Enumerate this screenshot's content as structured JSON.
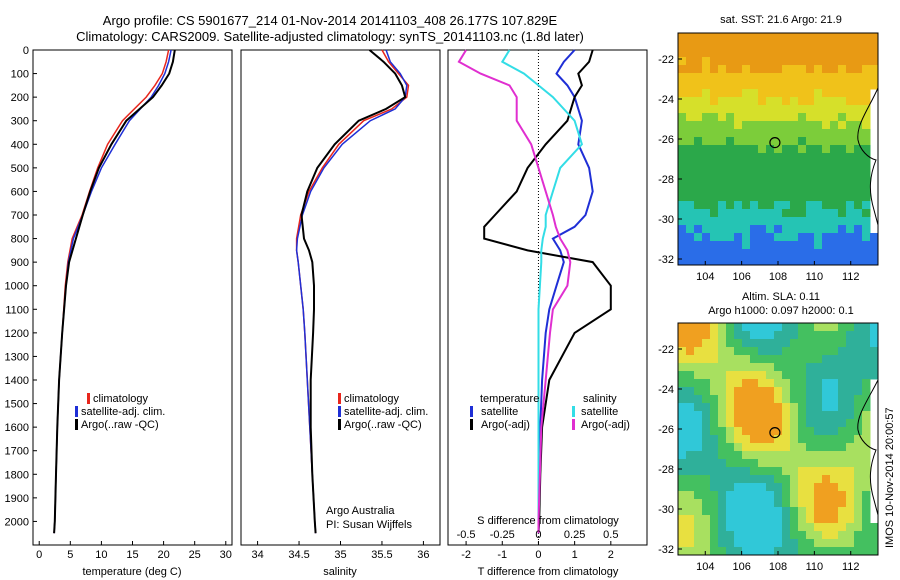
{
  "header": {
    "line1": "Argo profile: CS 5901677_214 01-Nov-2014 20141103_408 26.177S 107.829E",
    "line2": "Climatology: CARS2009. Satellite-adjusted climatology: synTS_20141103.nc (1.8d later)"
  },
  "colors": {
    "climatology": "#e8261c",
    "satellite": "#1f2fd6",
    "argo": "#000000",
    "sat_salinity": "#33dde6",
    "argo_salinity": "#e02fd0"
  },
  "chart_data": [
    {
      "type": "line",
      "name": "temperature-panel",
      "xlabel": "temperature (deg C)",
      "ylabel": "",
      "xlim": [
        -1,
        31
      ],
      "ylim": [
        2100,
        0
      ],
      "x_ticks": [
        "0",
        "5",
        "10",
        "15",
        "20",
        "25",
        "30"
      ],
      "y_ticks": [
        "0",
        "100",
        "200",
        "300",
        "400",
        "500",
        "600",
        "700",
        "800",
        "900",
        "1000",
        "1100",
        "1200",
        "1300",
        "1400",
        "1500",
        "1600",
        "1700",
        "1800",
        "1900",
        "2000"
      ],
      "legend": [
        "climatology",
        "satellite-adj. clim.",
        "Argo(..raw -QC)"
      ],
      "depth": [
        0,
        50,
        100,
        150,
        200,
        300,
        400,
        500,
        600,
        700,
        800,
        900,
        1000,
        1200,
        1400,
        1600,
        1800,
        2000,
        2050
      ],
      "series": [
        {
          "name": "climatology",
          "values": [
            20.8,
            20.4,
            19.8,
            18.6,
            17.2,
            13.4,
            11.0,
            9.4,
            8.1,
            6.9,
            5.3,
            4.6,
            4.2,
            3.7,
            3.2,
            2.9,
            2.7,
            2.5,
            2.4
          ]
        },
        {
          "name": "satellite-adj. clim.",
          "values": [
            21.2,
            20.8,
            20.2,
            19.2,
            18.0,
            14.5,
            12.2,
            10.0,
            8.4,
            7.0,
            5.5,
            4.7,
            4.3,
            3.7,
            3.2,
            2.9,
            2.7,
            2.5,
            2.4
          ]
        },
        {
          "name": "Argo(..raw -QC)",
          "values": [
            21.8,
            21.5,
            20.9,
            19.7,
            18.3,
            14.0,
            11.6,
            9.6,
            8.2,
            7.0,
            5.9,
            4.8,
            4.3,
            3.7,
            3.2,
            2.9,
            2.7,
            2.5,
            2.4
          ]
        }
      ]
    },
    {
      "type": "line",
      "name": "salinity-panel",
      "xlabel": "salinity",
      "xlim": [
        33.8,
        36.2
      ],
      "ylim": [
        2100,
        0
      ],
      "x_ticks": [
        "34",
        "34.5",
        "35",
        "35.5",
        "36"
      ],
      "legend": [
        "climatology",
        "satellite-adj. clim.",
        "Argo(..raw -QC)"
      ],
      "annotation": [
        "Argo Australia",
        "PI: Susan Wijffels"
      ],
      "depth": [
        0,
        50,
        100,
        150,
        200,
        250,
        300,
        400,
        500,
        600,
        700,
        800,
        850,
        900,
        1000,
        1100,
        1200,
        1400,
        1600,
        1800,
        2000,
        2050
      ],
      "series": [
        {
          "name": "climatology",
          "values": [
            35.5,
            35.58,
            35.7,
            35.82,
            35.8,
            35.62,
            35.28,
            34.98,
            34.78,
            34.62,
            34.52,
            34.47,
            34.47,
            34.49,
            34.52,
            34.55,
            34.57,
            34.6,
            34.63,
            34.66,
            34.69,
            34.7
          ]
        },
        {
          "name": "satellite-adj. clim.",
          "values": [
            35.55,
            35.6,
            35.72,
            35.8,
            35.78,
            35.66,
            35.36,
            35.02,
            34.8,
            34.64,
            34.54,
            34.48,
            34.47,
            34.49,
            34.52,
            34.55,
            34.57,
            34.6,
            34.63,
            34.66,
            34.69,
            34.7
          ]
        },
        {
          "name": "Argo(..raw -QC)",
          "values": [
            35.35,
            35.52,
            35.66,
            35.74,
            35.78,
            35.55,
            35.22,
            34.93,
            34.72,
            34.6,
            34.53,
            34.56,
            34.62,
            34.66,
            34.68,
            34.68,
            34.67,
            34.64,
            34.64,
            34.66,
            34.69,
            34.7
          ]
        }
      ]
    },
    {
      "type": "line",
      "name": "difference-panel",
      "xlabel": "T difference from climatology",
      "xlabel_top": "S difference from climatology",
      "xlim": [
        -2.5,
        3.0
      ],
      "ylim": [
        2100,
        0
      ],
      "x_ticks_bottom": [
        "-2",
        "-1",
        "0",
        "1",
        "2"
      ],
      "x_ticks_top": [
        "-0.5",
        "-0.25",
        "0",
        "0.25",
        "0.5"
      ],
      "legend_left": [
        "temperature",
        "satellite",
        "Argo(-adj)"
      ],
      "legend_right": [
        "salinity",
        "satellite",
        "Argo(-adj)"
      ],
      "depth": [
        0,
        50,
        100,
        150,
        200,
        300,
        400,
        500,
        600,
        700,
        750,
        800,
        850,
        900,
        1000,
        1100,
        1200,
        1400,
        1600,
        1800,
        2000,
        2050
      ],
      "series": [
        {
          "name": "T satellite",
          "values": [
            1.0,
            0.7,
            0.5,
            0.8,
            1.0,
            1.2,
            1.1,
            1.4,
            1.5,
            1.3,
            1.0,
            0.4,
            0.6,
            0.7,
            0.5,
            0.3,
            0.2,
            0.1,
            0.05,
            0.02,
            0.0,
            0.0
          ]
        },
        {
          "name": "T Argo(-adj)",
          "values": [
            1.5,
            1.4,
            1.1,
            1.2,
            1.0,
            0.8,
            0.2,
            -0.3,
            -0.6,
            -1.2,
            -1.5,
            -1.5,
            -0.3,
            1.5,
            2.0,
            2.0,
            1.0,
            0.3,
            0.1,
            0.05,
            0.02,
            0.0
          ]
        },
        {
          "name": "S satellite",
          "values": [
            -0.2,
            -0.25,
            -0.1,
            0.0,
            0.1,
            0.25,
            0.3,
            0.15,
            0.1,
            0.05,
            0.05,
            0.03,
            0.02,
            0.02,
            0.01,
            0.0,
            0.0,
            0.0,
            0.0,
            0.0,
            0.0,
            0.0
          ]
        },
        {
          "name": "S Argo(-adj)",
          "values": [
            -0.5,
            -0.55,
            -0.4,
            -0.2,
            -0.15,
            -0.15,
            -0.05,
            0.0,
            0.05,
            0.1,
            0.12,
            0.15,
            0.2,
            0.22,
            0.2,
            0.1,
            0.08,
            0.05,
            0.02,
            0.01,
            0.0,
            0.0
          ]
        }
      ]
    },
    {
      "type": "heatmap",
      "name": "sst-map",
      "title": "sat. SST: 21.6 Argo: 21.9",
      "x_ticks": [
        "104",
        "106",
        "108",
        "110",
        "112"
      ],
      "y_ticks": [
        "-22",
        "-24",
        "-26",
        "-28",
        "-30",
        "-32"
      ],
      "xlim": [
        102.5,
        113.5
      ],
      "ylim": [
        -32.3,
        -20.7
      ],
      "argo_position": [
        107.83,
        -26.18
      ]
    },
    {
      "type": "heatmap",
      "name": "sla-map",
      "title": [
        "Altim. SLA: 0.11",
        "Argo h1000: 0.097 h2000: 0.1"
      ],
      "x_ticks": [
        "104",
        "106",
        "108",
        "110",
        "112"
      ],
      "y_ticks": [
        "-22",
        "-24",
        "-26",
        "-28",
        "-30",
        "-32"
      ],
      "xlim": [
        102.5,
        113.5
      ],
      "ylim": [
        -32.3,
        -20.7
      ],
      "argo_position": [
        107.83,
        -26.18
      ]
    }
  ],
  "footer": {
    "stamp": "IMOS 10-Nov-2014 20:00:57"
  }
}
